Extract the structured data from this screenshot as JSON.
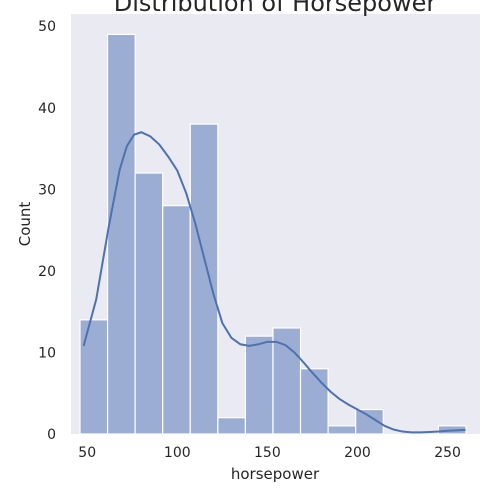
{
  "chart_data": {
    "type": "bar",
    "subtype": "histogram-with-kde",
    "title": "Distribution of Horsepower",
    "xlabel": "horsepower",
    "ylabel": "Count",
    "xlim": [
      41,
      268
    ],
    "ylim": [
      0,
      51.5
    ],
    "x_ticks": [
      50,
      100,
      150,
      200,
      250
    ],
    "y_ticks": [
      0,
      10,
      20,
      30,
      40,
      50
    ],
    "grid": false,
    "background_color": "#eaeaf2",
    "bar_color": "#9cadd3",
    "bar_edge_color": "#ffffff",
    "line_color": "#4c72b0",
    "bins": [
      {
        "start": 46.0,
        "end": 61.3,
        "count": 14
      },
      {
        "start": 61.3,
        "end": 76.6,
        "count": 49
      },
      {
        "start": 76.6,
        "end": 91.9,
        "count": 32
      },
      {
        "start": 91.9,
        "end": 107.2,
        "count": 28
      },
      {
        "start": 107.2,
        "end": 122.5,
        "count": 38
      },
      {
        "start": 122.5,
        "end": 137.8,
        "count": 2
      },
      {
        "start": 137.8,
        "end": 153.1,
        "count": 12
      },
      {
        "start": 153.1,
        "end": 168.4,
        "count": 13
      },
      {
        "start": 168.4,
        "end": 183.7,
        "count": 8
      },
      {
        "start": 183.7,
        "end": 199.0,
        "count": 1
      },
      {
        "start": 199.0,
        "end": 214.3,
        "count": 3
      },
      {
        "start": 214.3,
        "end": 229.6,
        "count": 0
      },
      {
        "start": 229.6,
        "end": 244.9,
        "count": 0
      },
      {
        "start": 244.9,
        "end": 260.2,
        "count": 1
      }
    ],
    "kde": {
      "x": [
        48,
        55,
        62,
        68,
        72,
        76,
        80,
        85,
        90,
        95,
        100,
        105,
        110,
        115,
        120,
        125,
        130,
        135,
        140,
        145,
        150,
        155,
        160,
        165,
        170,
        175,
        180,
        185,
        190,
        195,
        200,
        205,
        210,
        215,
        220,
        225,
        230,
        235,
        240,
        245,
        250,
        255,
        260
      ],
      "y": [
        10.8,
        16.5,
        25.5,
        32.4,
        35.3,
        36.7,
        37.0,
        36.5,
        35.5,
        34.0,
        32.3,
        29.5,
        25.8,
        21.5,
        17.2,
        13.6,
        11.8,
        11.0,
        10.8,
        11.0,
        11.3,
        11.3,
        10.9,
        10.0,
        8.8,
        7.5,
        6.3,
        5.2,
        4.3,
        3.6,
        3.0,
        2.4,
        1.7,
        1.0,
        0.55,
        0.3,
        0.2,
        0.2,
        0.25,
        0.3,
        0.4,
        0.45,
        0.5
      ]
    }
  }
}
